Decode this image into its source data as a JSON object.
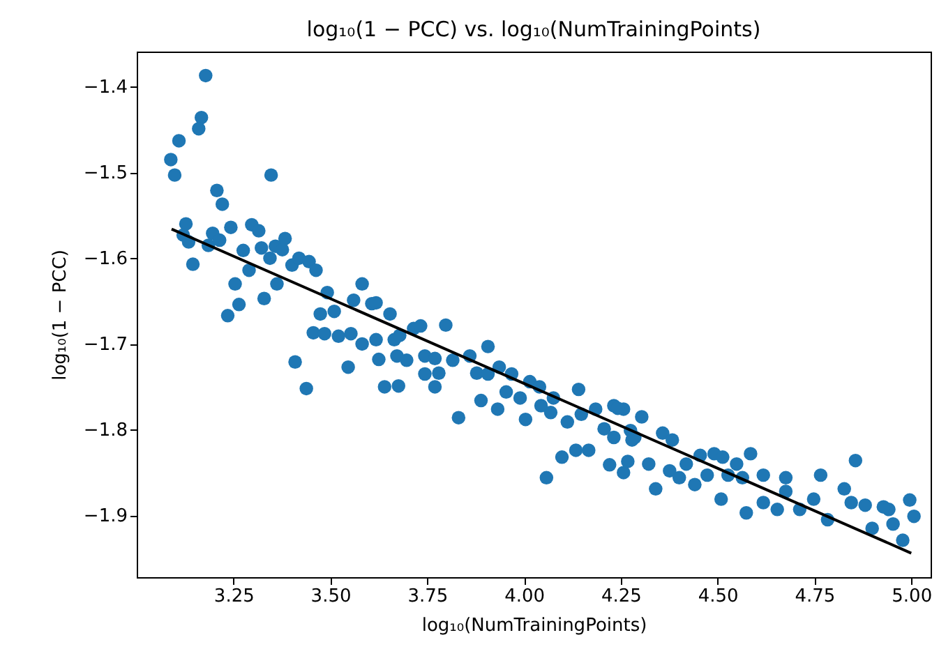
{
  "chart_data": {
    "type": "scatter",
    "title": "log₁₀(1 − PCC) vs. log₁₀(NumTrainingPoints)",
    "xlabel": "log₁₀(NumTrainingPoints)",
    "ylabel": "log₁₀(1 − PCC)",
    "xlim": [
      3.0,
      5.05
    ],
    "ylim": [
      -1.972,
      -1.359
    ],
    "xticks": [
      {
        "value": 3.25,
        "label": "3.25"
      },
      {
        "value": 3.5,
        "label": "3.50"
      },
      {
        "value": 3.75,
        "label": "3.75"
      },
      {
        "value": 4.0,
        "label": "4.00"
      },
      {
        "value": 4.25,
        "label": "4.25"
      },
      {
        "value": 4.5,
        "label": "4.50"
      },
      {
        "value": 4.75,
        "label": "4.75"
      },
      {
        "value": 5.0,
        "label": "5.00"
      }
    ],
    "yticks": [
      {
        "value": -1.9,
        "label": "−1.9"
      },
      {
        "value": -1.8,
        "label": "−1.8"
      },
      {
        "value": -1.7,
        "label": "−1.7"
      },
      {
        "value": -1.6,
        "label": "−1.6"
      },
      {
        "value": -1.5,
        "label": "−1.5"
      },
      {
        "value": -1.4,
        "label": "−1.4"
      }
    ],
    "grid": false,
    "series": [
      {
        "marker": "circle",
        "color": "#1f77b4",
        "x": [
          3.178,
          3.167,
          3.16,
          3.109,
          3.088,
          3.098,
          3.347,
          3.207,
          3.221,
          3.127,
          3.12,
          3.134,
          3.145,
          3.196,
          3.185,
          3.214,
          3.243,
          3.275,
          3.29,
          3.297,
          3.315,
          3.322,
          3.344,
          3.358,
          3.383,
          3.376,
          3.401,
          3.419,
          3.445,
          3.463,
          3.254,
          3.264,
          3.235,
          3.329,
          3.362,
          3.492,
          3.474,
          3.51,
          3.582,
          3.56,
          3.607,
          3.654,
          3.456,
          3.485,
          3.521,
          3.553,
          3.582,
          3.618,
          3.625,
          3.546,
          3.409,
          3.438,
          3.64,
          3.676,
          3.665,
          3.618,
          3.679,
          3.715,
          3.733,
          3.798,
          3.672,
          3.697,
          3.744,
          3.77,
          3.744,
          3.77,
          3.78,
          3.816,
          3.86,
          3.907,
          3.878,
          3.907,
          3.936,
          3.968,
          3.889,
          3.932,
          3.954,
          3.99,
          4.015,
          4.04,
          4.004,
          3.831,
          4.044,
          4.076,
          4.069,
          4.112,
          4.141,
          4.148,
          4.185,
          4.232,
          4.257,
          4.207,
          4.232,
          4.275,
          4.304,
          4.286,
          4.098,
          4.134,
          4.167,
          4.221,
          4.268,
          4.257,
          4.322,
          4.058,
          4.34,
          4.242,
          4.279,
          4.358,
          4.383,
          4.376,
          4.401,
          4.419,
          4.455,
          4.491,
          4.513,
          4.441,
          4.473,
          4.549,
          4.585,
          4.527,
          4.509,
          4.564,
          4.618,
          4.676,
          4.574,
          4.618,
          4.654,
          4.676,
          4.712,
          4.748,
          4.766,
          4.784,
          4.827,
          4.856,
          4.845,
          4.881,
          4.899,
          4.942,
          4.996,
          5.007,
          4.978,
          4.953,
          4.928
        ],
        "values": [
          -1.387,
          -1.436,
          -1.449,
          -1.463,
          -1.485,
          -1.503,
          -1.503,
          -1.521,
          -1.537,
          -1.56,
          -1.573,
          -1.581,
          -1.607,
          -1.571,
          -1.585,
          -1.579,
          -1.564,
          -1.591,
          -1.614,
          -1.561,
          -1.568,
          -1.588,
          -1.6,
          -1.586,
          -1.577,
          -1.59,
          -1.608,
          -1.6,
          -1.604,
          -1.614,
          -1.63,
          -1.654,
          -1.667,
          -1.647,
          -1.63,
          -1.64,
          -1.665,
          -1.662,
          -1.63,
          -1.649,
          -1.653,
          -1.665,
          -1.687,
          -1.688,
          -1.691,
          -1.688,
          -1.7,
          -1.695,
          -1.718,
          -1.727,
          -1.721,
          -1.752,
          -1.75,
          -1.749,
          -1.695,
          -1.652,
          -1.69,
          -1.682,
          -1.679,
          -1.678,
          -1.714,
          -1.719,
          -1.714,
          -1.717,
          -1.735,
          -1.75,
          -1.734,
          -1.719,
          -1.714,
          -1.703,
          -1.734,
          -1.735,
          -1.727,
          -1.735,
          -1.766,
          -1.776,
          -1.756,
          -1.763,
          -1.744,
          -1.75,
          -1.788,
          -1.786,
          -1.772,
          -1.763,
          -1.78,
          -1.791,
          -1.753,
          -1.782,
          -1.776,
          -1.772,
          -1.776,
          -1.799,
          -1.809,
          -1.801,
          -1.785,
          -1.809,
          -1.832,
          -1.824,
          -1.824,
          -1.841,
          -1.837,
          -1.85,
          -1.84,
          -1.856,
          -1.869,
          -1.775,
          -1.812,
          -1.804,
          -1.812,
          -1.848,
          -1.856,
          -1.84,
          -1.83,
          -1.828,
          -1.832,
          -1.864,
          -1.853,
          -1.84,
          -1.828,
          -1.853,
          -1.881,
          -1.856,
          -1.853,
          -1.856,
          -1.897,
          -1.885,
          -1.893,
          -1.872,
          -1.893,
          -1.881,
          -1.853,
          -1.905,
          -1.869,
          -1.836,
          -1.885,
          -1.888,
          -1.915,
          -1.893,
          -1.882,
          -1.901,
          -1.929,
          -1.91,
          -1.89
        ]
      },
      {
        "type": "line",
        "color": "#000000",
        "x": [
          3.09,
          5.0
        ],
        "values": [
          -1.566,
          -1.944
        ]
      }
    ]
  }
}
